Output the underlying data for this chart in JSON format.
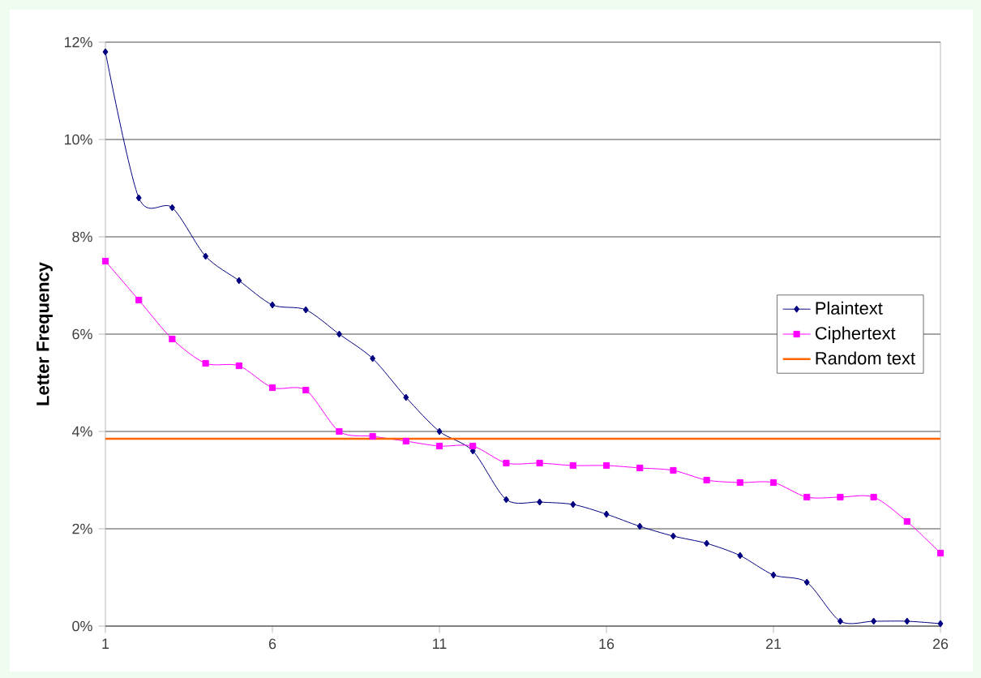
{
  "chart_data": {
    "type": "line",
    "ylabel": "**Letter Frequency**",
    "xlim": [
      1,
      26
    ],
    "xticks": [
      1,
      6,
      11,
      16,
      21,
      26
    ],
    "ylim": [
      0,
      12
    ],
    "yticks": [
      {
        "value": 0,
        "label": "0%"
      },
      {
        "value": 2,
        "label": "2%"
      },
      {
        "value": 4,
        "label": "4%"
      },
      {
        "value": 6,
        "label": "6%"
      },
      {
        "value": 8,
        "label": "8%"
      },
      {
        "value": 10,
        "label": "10%"
      },
      {
        "value": 12,
        "label": "12%"
      }
    ],
    "grid": "y",
    "legend": "right",
    "series": [
      {
        "name": "Plaintext",
        "color": "#000080",
        "marker": "diamond",
        "x": [
          1,
          2,
          3,
          4,
          5,
          6,
          7,
          8,
          9,
          10,
          11,
          12,
          13,
          14,
          15,
          16,
          17,
          18,
          19,
          20,
          21,
          22,
          23,
          24,
          25,
          26
        ],
        "values": [
          11.8,
          8.8,
          8.6,
          7.6,
          7.1,
          6.6,
          6.5,
          6.0,
          5.5,
          4.7,
          4.0,
          3.6,
          2.6,
          2.55,
          2.5,
          2.3,
          2.05,
          1.85,
          1.7,
          1.45,
          1.05,
          0.9,
          0.1,
          0.1,
          0.1,
          0.05
        ]
      },
      {
        "name": "Ciphertext",
        "color": "#ff00ff",
        "marker": "square",
        "x": [
          1,
          2,
          3,
          4,
          5,
          6,
          7,
          8,
          9,
          10,
          11,
          12,
          13,
          14,
          15,
          16,
          17,
          18,
          19,
          20,
          21,
          22,
          23,
          24,
          25,
          26
        ],
        "values": [
          7.5,
          6.7,
          5.9,
          5.4,
          5.35,
          4.9,
          4.85,
          4.0,
          3.9,
          3.8,
          3.7,
          3.7,
          3.35,
          3.35,
          3.3,
          3.3,
          3.25,
          3.2,
          3.0,
          2.95,
          2.95,
          2.65,
          2.65,
          2.65,
          2.15,
          1.5
        ]
      },
      {
        "name": "Random text",
        "color": "#ff6600",
        "marker": "none",
        "x": [
          1,
          26
        ],
        "values": [
          3.85,
          3.85
        ]
      }
    ]
  }
}
